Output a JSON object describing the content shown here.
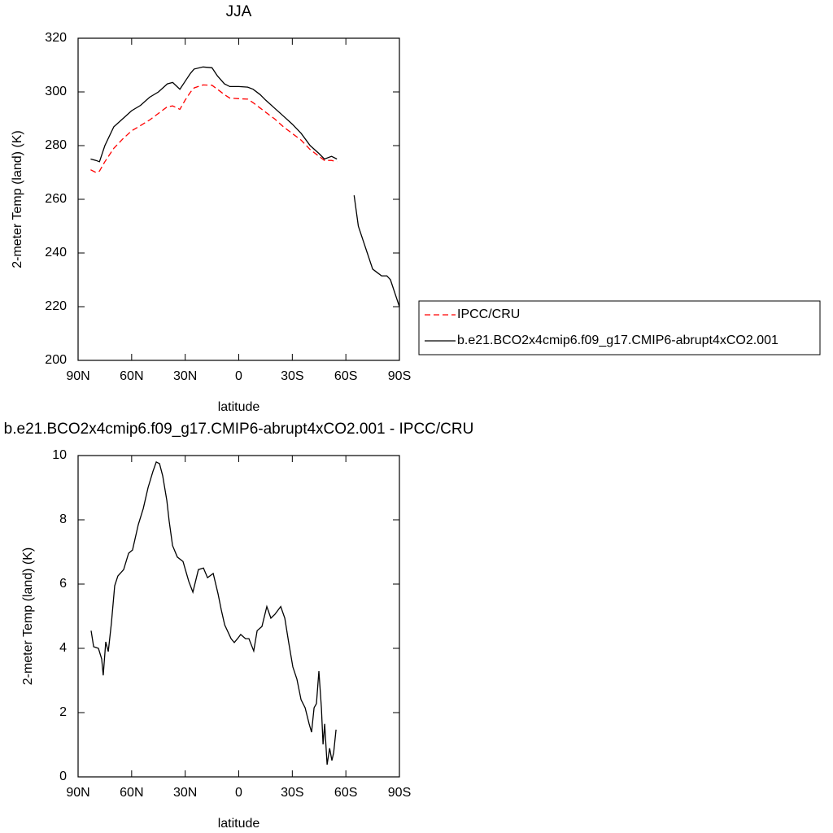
{
  "chart_data": [
    {
      "type": "line",
      "title": "JJA",
      "xlabel": "latitude",
      "ylabel": "2-meter Temp (land) (K)",
      "x": [
        83,
        80,
        78,
        75,
        70,
        65,
        60,
        55,
        50,
        45,
        40,
        37,
        33,
        30,
        27,
        25,
        20,
        15,
        12,
        8,
        5,
        0,
        -5,
        -8,
        -12,
        -15,
        -20,
        -25,
        -30,
        -35,
        -40,
        -45,
        -48,
        -52,
        -55,
        -60,
        -64.6,
        -67,
        -70,
        -72,
        -73,
        -75,
        -78,
        -80,
        -83,
        -85,
        -88,
        -90
      ],
      "series": [
        {
          "name": "IPCC/CRU",
          "color": "#ff0000",
          "style": "dashed",
          "values": [
            271,
            270,
            270.5,
            274,
            279,
            282.5,
            285.5,
            287.5,
            289.5,
            292,
            294.5,
            294.8,
            293.5,
            297,
            300,
            301.5,
            302.6,
            302.5,
            301,
            299,
            297.7,
            297.5,
            297.3,
            296,
            294,
            292.5,
            290,
            287,
            284.5,
            282,
            278.5,
            276,
            274.5,
            274.5,
            274,
            null,
            null,
            null,
            null,
            null,
            null,
            null,
            null,
            null,
            null,
            null,
            null,
            null
          ]
        },
        {
          "name": "b.e21.BCO2x4cmip6.f09_g17.CMIP6-abrupt4xCO2.001",
          "color": "#000000",
          "style": "solid",
          "values": [
            275,
            274.5,
            274,
            280,
            287,
            290,
            293,
            295,
            298,
            300,
            303,
            303.5,
            301,
            304,
            307,
            308.5,
            309.3,
            309,
            306,
            303,
            302,
            302,
            301.8,
            301,
            299,
            297,
            294,
            291,
            288,
            284.5,
            280,
            277,
            275,
            276,
            275,
            null,
            261.5,
            250,
            244,
            240,
            238,
            234,
            232.5,
            231.5,
            231.5,
            230,
            224,
            220
          ]
        }
      ],
      "xlim": [
        90,
        -90
      ],
      "xticks": [
        {
          "value": 90,
          "label": "90N"
        },
        {
          "value": 60,
          "label": "60N"
        },
        {
          "value": 30,
          "label": "30N"
        },
        0,
        {
          "value": -30,
          "label": "30S"
        },
        {
          "value": -60,
          "label": "60S"
        },
        {
          "value": -90,
          "label": "90S"
        }
      ],
      "ylim": [
        200,
        320
      ],
      "yticks": [
        200,
        220,
        240,
        260,
        280,
        300,
        320
      ],
      "legend": "right"
    },
    {
      "type": "line",
      "title": "b.e21.BCO2x4cmip6.f09_g17.CMIP6-abrupt4xCO2.001 - IPCC/CRU",
      "xlabel": "latitude",
      "ylabel": "2-meter Temp (land) (K)",
      "x": [
        82.7,
        81.3,
        78.6,
        76.8,
        75.9,
        74.5,
        73.1,
        71.3,
        69.5,
        67.7,
        64.5,
        61.7,
        59.5,
        56.3,
        53.5,
        50.8,
        48.1,
        46.2,
        44.4,
        42.6,
        40.3,
        39,
        37.1,
        34.4,
        31.2,
        28,
        25.7,
        22.6,
        19.8,
        17.5,
        14.3,
        11.6,
        9.8,
        7.9,
        4.3,
        2.5,
        0.7,
        -1.1,
        -3.8,
        -5.7,
        -8.4,
        -10.3,
        -13,
        -15.7,
        -18,
        -20.3,
        -23.5,
        -25.8,
        -28,
        -30.3,
        -32.6,
        -34.9,
        -37.2,
        -39.4,
        -40.8,
        -42.2,
        -43.5,
        -44.9,
        -46.3,
        -47.2,
        -48.1,
        -49.5,
        -50.9,
        -52.2,
        -53.2,
        -54.5
      ],
      "series": [
        {
          "color": "#000000",
          "style": "solid",
          "values": [
            4.55,
            4.05,
            4.0,
            3.67,
            3.16,
            4.2,
            3.9,
            4.8,
            5.95,
            6.25,
            6.45,
            6.96,
            7.06,
            7.85,
            8.35,
            9.0,
            9.5,
            9.8,
            9.75,
            9.37,
            8.6,
            7.97,
            7.2,
            6.84,
            6.7,
            6.08,
            5.75,
            6.45,
            6.5,
            6.2,
            6.33,
            5.7,
            5.2,
            4.73,
            4.3,
            4.18,
            4.3,
            4.43,
            4.3,
            4.3,
            3.92,
            4.55,
            4.68,
            5.3,
            4.94,
            5.06,
            5.3,
            4.94,
            4.18,
            3.42,
            3.04,
            2.4,
            2.15,
            1.65,
            1.39,
            2.15,
            2.28,
            3.29,
            2.15,
            1.01,
            1.65,
            0.38,
            0.89,
            0.51,
            0.76,
            1.47
          ]
        }
      ],
      "xlim": [
        90,
        -90
      ],
      "xticks": [
        {
          "value": 90,
          "label": "90N"
        },
        {
          "value": 60,
          "label": "60N"
        },
        {
          "value": 30,
          "label": "30N"
        },
        0,
        {
          "value": -30,
          "label": "30S"
        },
        {
          "value": -60,
          "label": "60S"
        },
        {
          "value": -90,
          "label": "90S"
        }
      ],
      "ylim": [
        0,
        10
      ],
      "yticks": [
        0,
        2,
        4,
        6,
        8,
        10
      ]
    }
  ]
}
